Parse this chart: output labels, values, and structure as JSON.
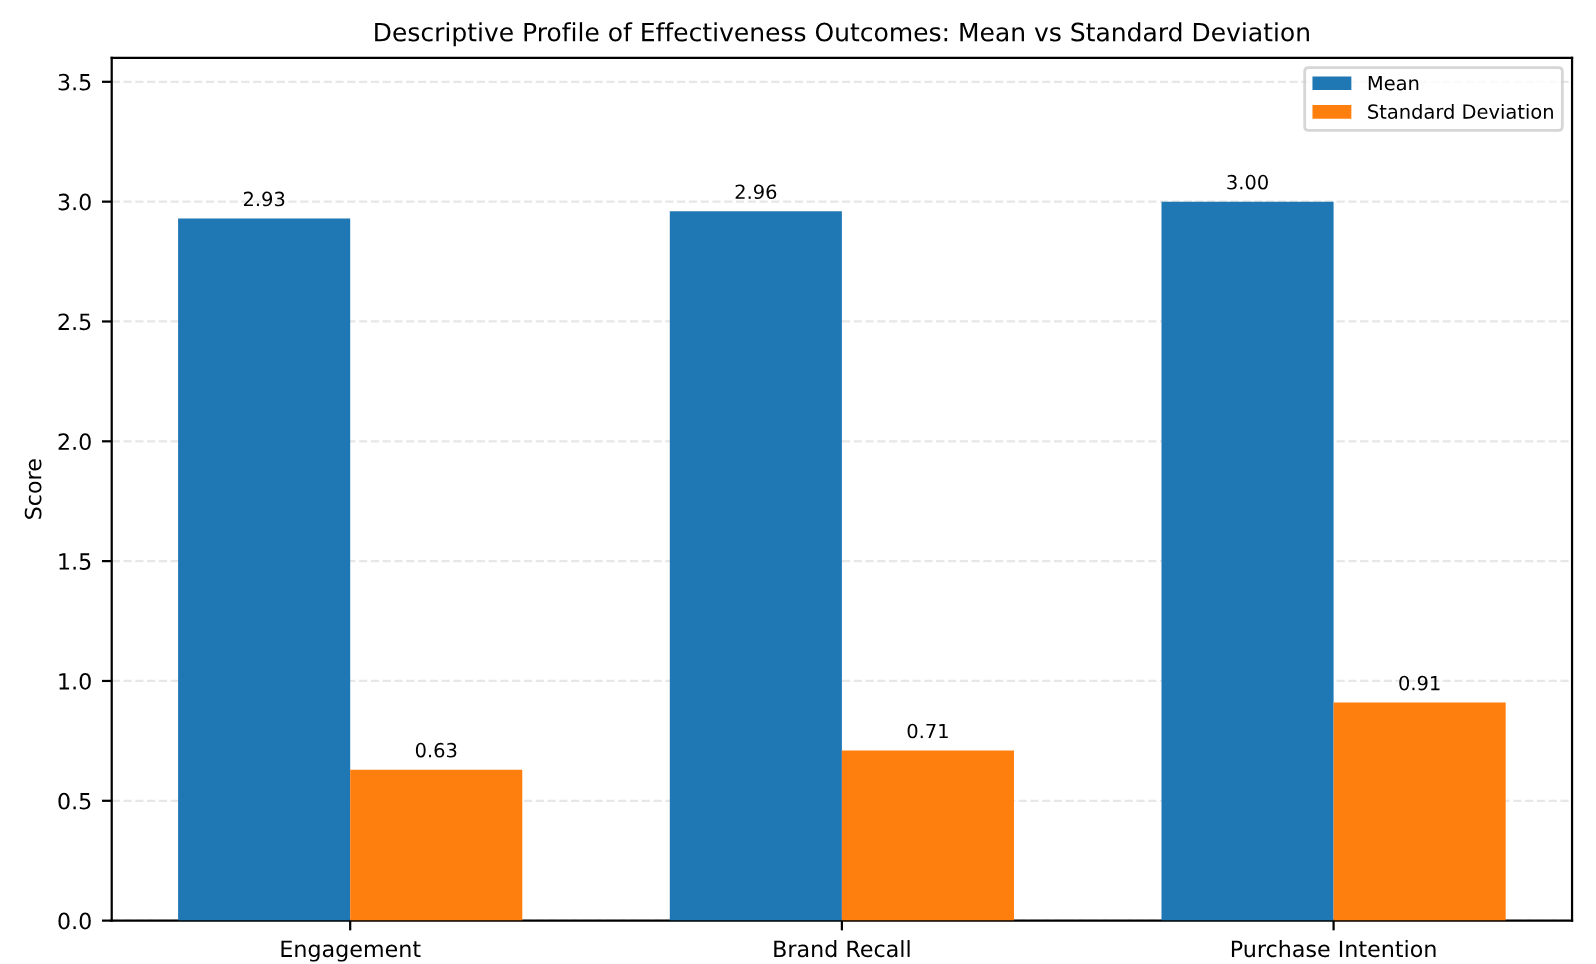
{
  "chart_data": {
    "type": "bar",
    "title": "Descriptive Profile of Effectiveness Outcomes: Mean vs Standard Deviation",
    "ylabel": "Score",
    "categories": [
      "Engagement",
      "Brand Recall",
      "Purchase Intention"
    ],
    "series": [
      {
        "name": "Mean",
        "color": "#1f77b4",
        "values": [
          2.93,
          2.96,
          3.0
        ],
        "value_labels": [
          "2.93",
          "2.96",
          "3.00"
        ]
      },
      {
        "name": "Standard Deviation",
        "color": "#ff7f0e",
        "values": [
          0.63,
          0.71,
          0.91
        ],
        "value_labels": [
          "0.63",
          "0.71",
          "0.91"
        ]
      }
    ],
    "ylim": [
      0,
      3.6
    ],
    "yticks": [
      {
        "value": 0,
        "label": "0.0"
      },
      {
        "value": 0.5,
        "label": "0.5"
      },
      {
        "value": 1,
        "label": "1.0"
      },
      {
        "value": 1.5,
        "label": "1.5"
      },
      {
        "value": 2,
        "label": "2.0"
      },
      {
        "value": 2.5,
        "label": "2.5"
      },
      {
        "value": 3,
        "label": "3.0"
      },
      {
        "value": 3.5,
        "label": "3.5"
      }
    ],
    "grid": "y",
    "legend": "top right"
  }
}
